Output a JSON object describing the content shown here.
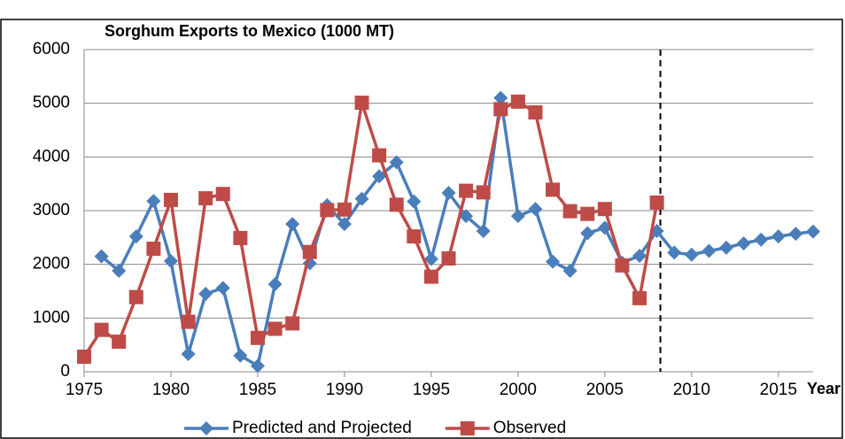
{
  "chart_data": {
    "type": "line",
    "title": "Sorghum Exports to Mexico (1000 MT)",
    "x_label": "Year",
    "x": [
      1975,
      1976,
      1977,
      1978,
      1979,
      1980,
      1981,
      1982,
      1983,
      1984,
      1985,
      1986,
      1987,
      1988,
      1989,
      1990,
      1991,
      1992,
      1993,
      1994,
      1995,
      1996,
      1997,
      1998,
      1999,
      2000,
      2001,
      2002,
      2003,
      2004,
      2005,
      2006,
      2007,
      2008,
      2009,
      2010,
      2011,
      2012,
      2013,
      2014,
      2015,
      2016,
      2017
    ],
    "series": [
      {
        "name": "Predicted and Projected",
        "color": "#4a7ebb",
        "marker": "diamond",
        "values": [
          null,
          2150,
          1880,
          2520,
          3180,
          2060,
          330,
          1450,
          1560,
          300,
          110,
          1630,
          2750,
          2020,
          3100,
          2750,
          3220,
          3640,
          3900,
          3170,
          2100,
          3330,
          2900,
          2620,
          5100,
          2900,
          3030,
          2050,
          1880,
          2580,
          2680,
          2030,
          2160,
          2620,
          2220,
          2180,
          2250,
          2310,
          2390,
          2460,
          2520,
          2570,
          2610
        ]
      },
      {
        "name": "Observed",
        "color": "#be4b48",
        "marker": "square",
        "values": [
          280,
          780,
          560,
          1390,
          2290,
          3200,
          930,
          3230,
          3310,
          2490,
          630,
          800,
          900,
          2230,
          3010,
          3020,
          5010,
          4030,
          3110,
          2520,
          1770,
          2110,
          3370,
          3340,
          4890,
          5030,
          4830,
          3390,
          2990,
          2940,
          3030,
          1980,
          1370,
          3150,
          null,
          null,
          null,
          null,
          null,
          null,
          null,
          null,
          null
        ]
      }
    ],
    "xlim": [
      1975,
      2017
    ],
    "xticks": [
      1975,
      1980,
      1985,
      1990,
      1995,
      2000,
      2005,
      2010,
      2015
    ],
    "ylim": [
      0,
      6000
    ],
    "yticks": [
      0,
      1000,
      2000,
      3000,
      4000,
      5000,
      6000
    ],
    "grid": true,
    "vline": 2008.2,
    "legend": "bottom"
  }
}
